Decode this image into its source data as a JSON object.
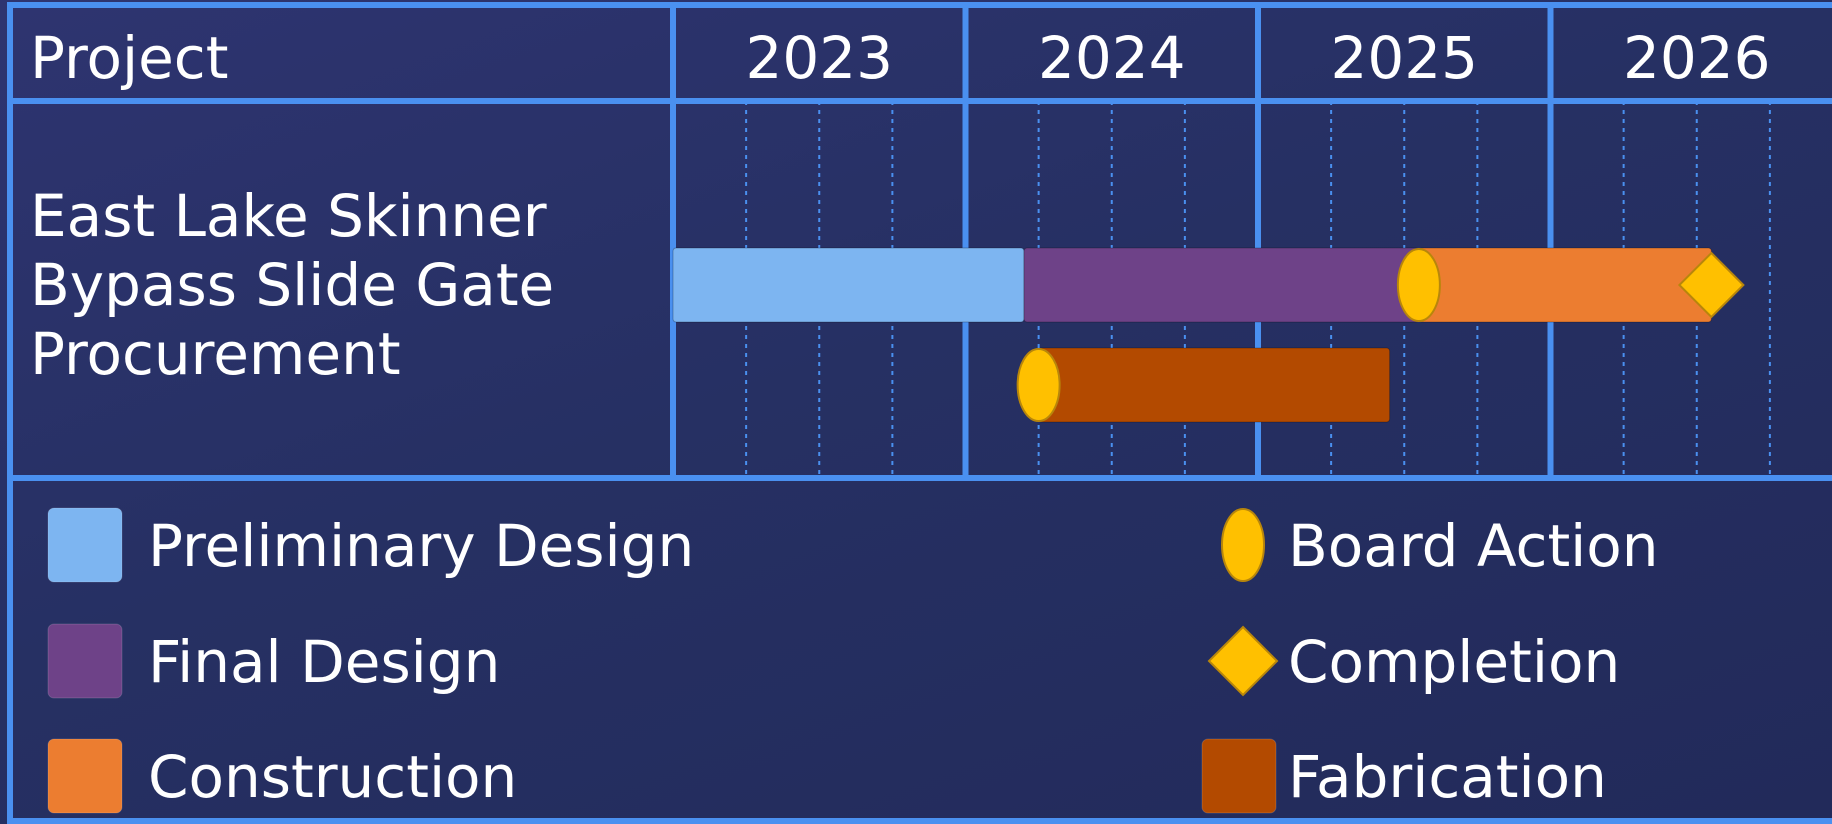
{
  "chart_data": {
    "type": "gantt",
    "column_header": "Project",
    "years": [
      "2023",
      "2024",
      "2025",
      "2026"
    ],
    "project": {
      "name_lines": [
        "East Lake Skinner",
        "Bypass Slide Gate",
        "Procurement"
      ]
    },
    "x_range": [
      2023.0,
      2027.0
    ],
    "tasks": [
      {
        "name": "Preliminary Design",
        "row": 0,
        "start": 2023.0,
        "end": 2024.2,
        "color": "#7db5f1"
      },
      {
        "name": "Final Design",
        "row": 0,
        "start": 2024.2,
        "end": 2025.55,
        "color": "#6e4288"
      },
      {
        "name": "Construction",
        "row": 0,
        "start": 2025.55,
        "end": 2026.55,
        "color": "#ec7d30"
      },
      {
        "name": "Fabrication",
        "row": 1,
        "start": 2024.25,
        "end": 2025.45,
        "color": "#b34a00"
      }
    ],
    "milestones": [
      {
        "name": "Board Action",
        "shape": "oval",
        "row": 0,
        "at": 2025.55,
        "color": "#ffc000"
      },
      {
        "name": "Board Action",
        "shape": "oval",
        "row": 1,
        "at": 2024.25,
        "color": "#ffc000"
      },
      {
        "name": "Completion",
        "shape": "diamond",
        "row": 0,
        "at": 2026.55,
        "color": "#ffc000"
      }
    ],
    "legend": {
      "placement": "bottom",
      "entries": [
        {
          "label": "Preliminary Design",
          "shape": "square",
          "color": "#7db5f1"
        },
        {
          "label": "Final Design",
          "shape": "square",
          "color": "#6e4288"
        },
        {
          "label": "Construction",
          "shape": "square",
          "color": "#ec7d30"
        },
        {
          "label": "Board Action",
          "shape": "oval",
          "color": "#ffc000"
        },
        {
          "label": "Completion",
          "shape": "diamond",
          "color": "#ffc000"
        },
        {
          "label": "Fabrication",
          "shape": "square",
          "color": "#b34a00"
        }
      ]
    }
  },
  "colors": {
    "grid": "#4a90f0",
    "text": "#ffffff"
  }
}
